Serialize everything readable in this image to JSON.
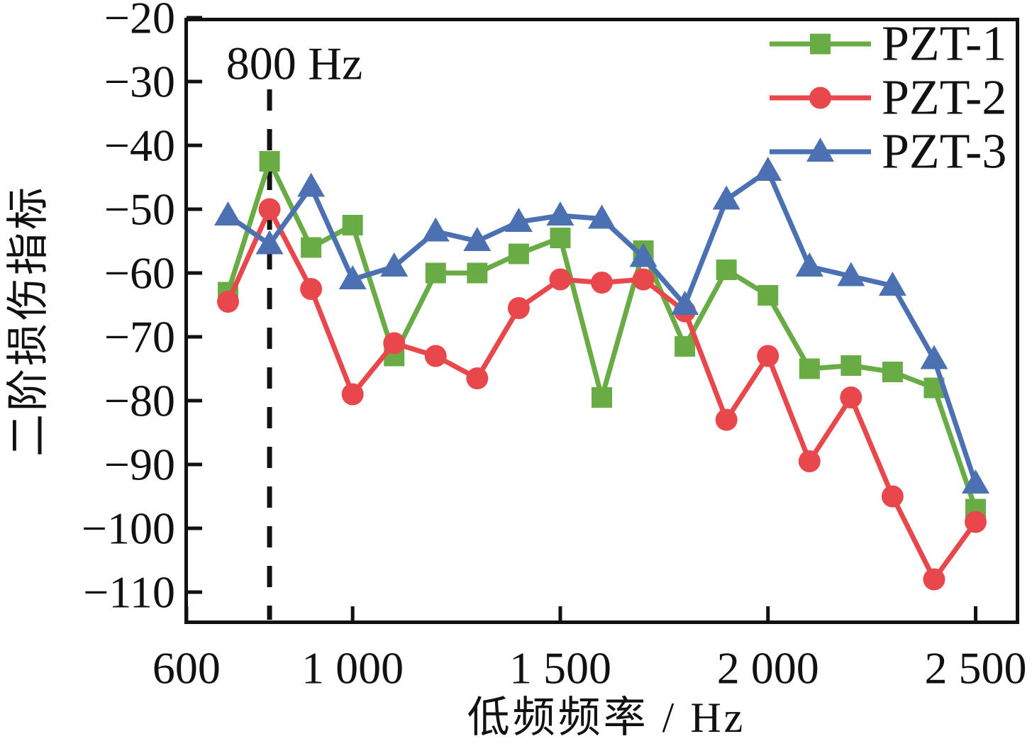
{
  "chart_data": {
    "type": "line",
    "title": "",
    "xlabel": "低频频率 / Hz",
    "ylabel": "二阶损伤指标",
    "xlim": [
      595,
      2605
    ],
    "ylim": [
      -115,
      -20
    ],
    "grid": false,
    "legend_position": "top-right",
    "axis_color": "#111111",
    "annotation": {
      "text": "800 Hz",
      "x": 800
    },
    "x": [
      700,
      800,
      900,
      1000,
      1100,
      1200,
      1300,
      1400,
      1500,
      1600,
      1700,
      1800,
      1900,
      2000,
      2100,
      2200,
      2300,
      2400,
      2500
    ],
    "series": [
      {
        "name": "PZT-1",
        "marker": "square",
        "color": "#69AC45",
        "values": [
          -63,
          -42.5,
          -56,
          -52.5,
          -73,
          -60,
          -60,
          -57,
          -54.5,
          -79.5,
          -56.5,
          -71.5,
          -59.5,
          -63.5,
          -75,
          -74.5,
          -75.5,
          -78,
          -97
        ]
      },
      {
        "name": "PZT-2",
        "marker": "circle",
        "color": "#E8474B",
        "values": [
          -64.5,
          -50,
          -62.5,
          -79,
          -71,
          -73,
          -76.5,
          -65.5,
          -61,
          -61.5,
          -61,
          -66,
          -83,
          -73,
          -89.5,
          -79.5,
          -95,
          -108,
          -99
        ]
      },
      {
        "name": "PZT-3",
        "marker": "triangle",
        "color": "#4C71B2",
        "values": [
          -51,
          -55.5,
          -46.5,
          -61,
          -59,
          -53.5,
          -55,
          -52,
          -51,
          -51.5,
          -57.5,
          -65,
          -48.5,
          -44,
          -59,
          -60.5,
          -62,
          -73.5,
          -93
        ]
      }
    ],
    "x_ticks": [
      {
        "value": 600,
        "label": "600"
      },
      {
        "value": 1000,
        "label": "1 000"
      },
      {
        "value": 1500,
        "label": "1 500"
      },
      {
        "value": 2000,
        "label": "2 000"
      },
      {
        "value": 2500,
        "label": "2 500"
      }
    ],
    "y_ticks": [
      {
        "value": -20,
        "label": "−20"
      },
      {
        "value": -30,
        "label": "−30"
      },
      {
        "value": -40,
        "label": "−40"
      },
      {
        "value": -50,
        "label": "−50"
      },
      {
        "value": -60,
        "label": "−60"
      },
      {
        "value": -70,
        "label": "−70"
      },
      {
        "value": -80,
        "label": "−80"
      },
      {
        "value": -90,
        "label": "−90"
      },
      {
        "value": -100,
        "label": "−100"
      },
      {
        "value": -110,
        "label": "−110"
      }
    ]
  }
}
